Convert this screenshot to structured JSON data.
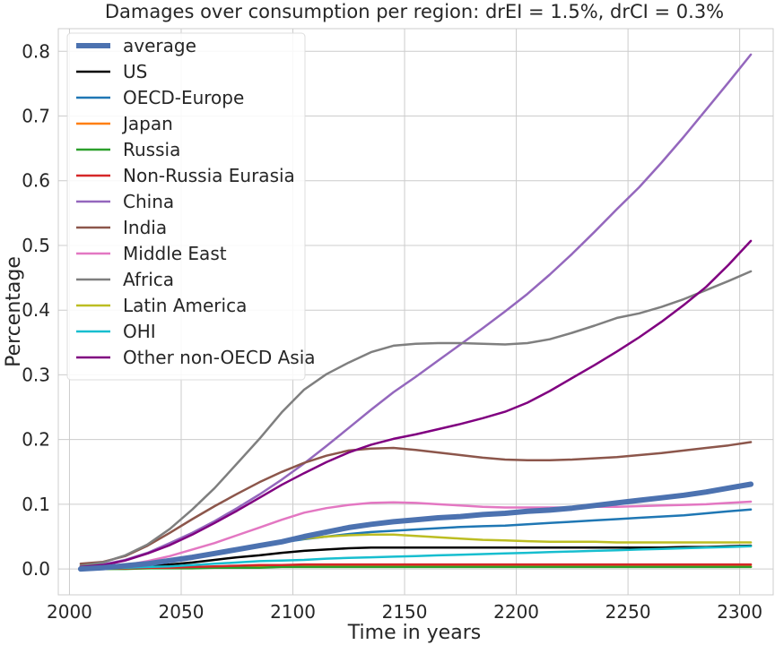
{
  "chart_data": {
    "type": "line",
    "title": "Damages over consumption per region: drEI = 1.5%, drCI = 0.3%",
    "xlabel": "Time in years",
    "ylabel": "Percentage",
    "xlim": [
      1995,
      2315
    ],
    "ylim": [
      -0.04,
      0.835
    ],
    "xticks": [
      2000,
      2050,
      2100,
      2150,
      2200,
      2250,
      2300
    ],
    "yticks": [
      0.0,
      0.1,
      0.2,
      0.3,
      0.4,
      0.5,
      0.6,
      0.7,
      0.8
    ],
    "grid": true,
    "legend_position": "upper-left",
    "x": [
      2005,
      2015,
      2025,
      2035,
      2045,
      2055,
      2065,
      2075,
      2085,
      2095,
      2105,
      2115,
      2125,
      2135,
      2145,
      2155,
      2165,
      2175,
      2185,
      2195,
      2205,
      2215,
      2225,
      2235,
      2245,
      2255,
      2265,
      2275,
      2285,
      2295,
      2305
    ],
    "series": [
      {
        "name": "average",
        "color": "#4c72b0",
        "width": 6,
        "values": [
          0.0,
          0.002,
          0.005,
          0.008,
          0.013,
          0.018,
          0.024,
          0.03,
          0.036,
          0.042,
          0.05,
          0.057,
          0.064,
          0.069,
          0.073,
          0.076,
          0.079,
          0.081,
          0.084,
          0.086,
          0.089,
          0.091,
          0.094,
          0.098,
          0.102,
          0.106,
          0.11,
          0.114,
          0.119,
          0.125,
          0.131
        ]
      },
      {
        "name": "US",
        "color": "#000000",
        "width": 2.5,
        "values": [
          0.0,
          0.001,
          0.002,
          0.004,
          0.007,
          0.01,
          0.014,
          0.018,
          0.021,
          0.025,
          0.028,
          0.03,
          0.032,
          0.033,
          0.033,
          0.033,
          0.033,
          0.033,
          0.033,
          0.033,
          0.033,
          0.033,
          0.033,
          0.033,
          0.033,
          0.033,
          0.033,
          0.034,
          0.034,
          0.035,
          0.036
        ]
      },
      {
        "name": "OECD-Europe",
        "color": "#1f77b4",
        "width": 2.5,
        "values": [
          0.0,
          0.002,
          0.004,
          0.008,
          0.013,
          0.018,
          0.024,
          0.03,
          0.036,
          0.041,
          0.046,
          0.05,
          0.054,
          0.057,
          0.059,
          0.061,
          0.063,
          0.065,
          0.066,
          0.067,
          0.069,
          0.071,
          0.073,
          0.075,
          0.077,
          0.079,
          0.081,
          0.083,
          0.086,
          0.089,
          0.092
        ]
      },
      {
        "name": "Japan",
        "color": "#ff7f0e",
        "width": 2.5,
        "values": [
          0.0,
          0.0,
          0.001,
          0.001,
          0.002,
          0.002,
          0.003,
          0.003,
          0.003,
          0.004,
          0.004,
          0.004,
          0.004,
          0.004,
          0.004,
          0.004,
          0.004,
          0.004,
          0.004,
          0.004,
          0.004,
          0.004,
          0.004,
          0.004,
          0.004,
          0.004,
          0.004,
          0.004,
          0.004,
          0.004,
          0.004
        ]
      },
      {
        "name": "Russia",
        "color": "#2ca02c",
        "width": 2.5,
        "values": [
          0.0,
          0.0,
          0.0,
          0.001,
          0.001,
          0.001,
          0.002,
          0.002,
          0.002,
          0.003,
          0.003,
          0.003,
          0.003,
          0.003,
          0.003,
          0.003,
          0.003,
          0.003,
          0.003,
          0.003,
          0.003,
          0.003,
          0.003,
          0.003,
          0.003,
          0.003,
          0.003,
          0.003,
          0.003,
          0.003,
          0.003
        ]
      },
      {
        "name": "Non-Russia Eurasia",
        "color": "#d62728",
        "width": 2.5,
        "values": [
          0.0,
          0.001,
          0.001,
          0.002,
          0.002,
          0.003,
          0.004,
          0.005,
          0.006,
          0.006,
          0.007,
          0.007,
          0.007,
          0.007,
          0.007,
          0.007,
          0.007,
          0.007,
          0.007,
          0.007,
          0.007,
          0.007,
          0.007,
          0.007,
          0.007,
          0.007,
          0.007,
          0.007,
          0.007,
          0.007,
          0.007
        ]
      },
      {
        "name": "China",
        "color": "#9467bd",
        "width": 2.5,
        "values": [
          0.003,
          0.007,
          0.014,
          0.025,
          0.04,
          0.056,
          0.074,
          0.094,
          0.115,
          0.138,
          0.163,
          0.19,
          0.218,
          0.246,
          0.273,
          0.297,
          0.322,
          0.347,
          0.372,
          0.398,
          0.425,
          0.455,
          0.487,
          0.521,
          0.556,
          0.59,
          0.628,
          0.668,
          0.71,
          0.752,
          0.795
        ]
      },
      {
        "name": "India",
        "color": "#8c564b",
        "width": 2.5,
        "values": [
          0.008,
          0.011,
          0.02,
          0.036,
          0.056,
          0.077,
          0.097,
          0.116,
          0.134,
          0.15,
          0.164,
          0.175,
          0.183,
          0.186,
          0.187,
          0.184,
          0.18,
          0.176,
          0.172,
          0.169,
          0.168,
          0.168,
          0.169,
          0.171,
          0.173,
          0.176,
          0.179,
          0.183,
          0.187,
          0.191,
          0.196
        ]
      },
      {
        "name": "Middle East",
        "color": "#e377c2",
        "width": 2.5,
        "values": [
          0.0,
          0.002,
          0.006,
          0.012,
          0.02,
          0.03,
          0.04,
          0.052,
          0.064,
          0.076,
          0.087,
          0.094,
          0.099,
          0.102,
          0.103,
          0.102,
          0.1,
          0.098,
          0.096,
          0.095,
          0.095,
          0.095,
          0.095,
          0.096,
          0.096,
          0.097,
          0.098,
          0.099,
          0.1,
          0.102,
          0.104
        ]
      },
      {
        "name": "Africa",
        "color": "#7f7f7f",
        "width": 2.5,
        "values": [
          0.005,
          0.01,
          0.021,
          0.038,
          0.062,
          0.092,
          0.125,
          0.163,
          0.201,
          0.242,
          0.277,
          0.301,
          0.319,
          0.335,
          0.345,
          0.348,
          0.349,
          0.349,
          0.348,
          0.347,
          0.349,
          0.355,
          0.365,
          0.376,
          0.388,
          0.395,
          0.405,
          0.417,
          0.431,
          0.445,
          0.46
        ]
      },
      {
        "name": "Latin America",
        "color": "#bcbd22",
        "width": 2.5,
        "values": [
          0.0,
          0.002,
          0.005,
          0.009,
          0.014,
          0.02,
          0.026,
          0.032,
          0.038,
          0.043,
          0.047,
          0.05,
          0.052,
          0.053,
          0.053,
          0.051,
          0.049,
          0.047,
          0.045,
          0.044,
          0.043,
          0.042,
          0.042,
          0.042,
          0.041,
          0.041,
          0.041,
          0.041,
          0.041,
          0.041,
          0.041
        ]
      },
      {
        "name": "OHI",
        "color": "#17becf",
        "width": 2.5,
        "values": [
          0.0,
          0.001,
          0.002,
          0.003,
          0.004,
          0.006,
          0.008,
          0.01,
          0.012,
          0.013,
          0.014,
          0.016,
          0.017,
          0.018,
          0.019,
          0.02,
          0.021,
          0.022,
          0.023,
          0.024,
          0.025,
          0.026,
          0.027,
          0.028,
          0.029,
          0.03,
          0.031,
          0.032,
          0.033,
          0.034,
          0.035
        ]
      },
      {
        "name": "Other non-OECD Asia",
        "color": "#800080",
        "width": 2.5,
        "values": [
          0.003,
          0.006,
          0.013,
          0.024,
          0.037,
          0.053,
          0.071,
          0.09,
          0.11,
          0.13,
          0.148,
          0.165,
          0.18,
          0.192,
          0.201,
          0.208,
          0.216,
          0.224,
          0.233,
          0.243,
          0.257,
          0.275,
          0.295,
          0.315,
          0.336,
          0.358,
          0.382,
          0.408,
          0.436,
          0.47,
          0.507
        ]
      }
    ]
  }
}
